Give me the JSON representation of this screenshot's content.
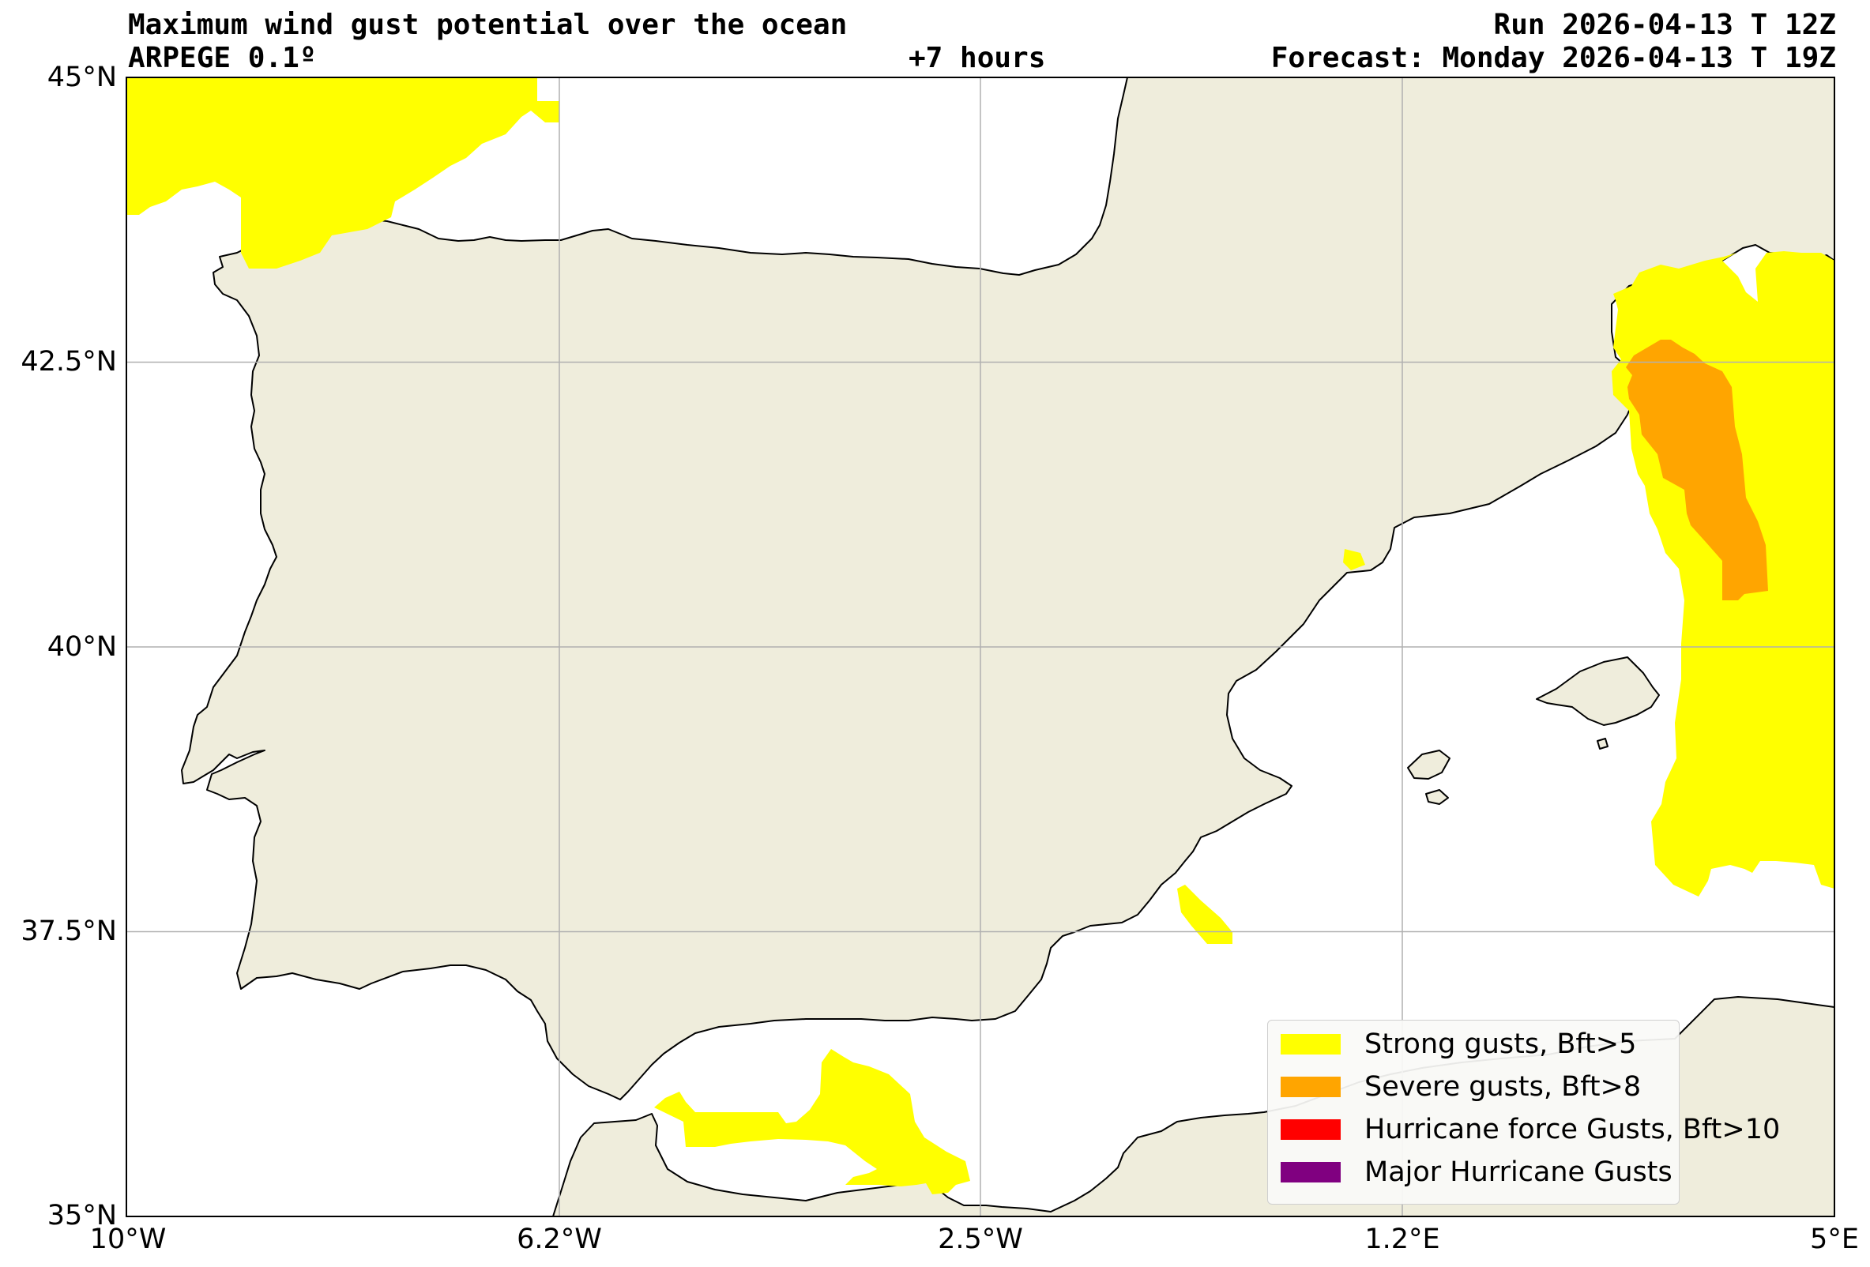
{
  "header": {
    "title": "Maximum wind gust potential over the ocean",
    "model": "ARPEGE 0.1º",
    "lead_time": "+7 hours",
    "run": "Run 2026-04-13 T 12Z",
    "forecast": "Forecast: Monday 2026-04-13 T 19Z"
  },
  "axes": {
    "lat_ticks": [
      "45°N",
      "42.5°N",
      "40°N",
      "37.5°N",
      "35°N"
    ],
    "lon_ticks": [
      "10°W",
      "6.2°W",
      "2.5°W",
      "1.2°E",
      "5°E"
    ]
  },
  "colors": {
    "land": "#efeddc",
    "sea": "#ffffff",
    "strong": "#ffff00",
    "severe": "#ffa500",
    "hurricane": "#ff0000",
    "major": "#800080"
  },
  "legend": {
    "items": [
      {
        "label": "Strong gusts, Bft>5",
        "color": "#ffff00"
      },
      {
        "label": "Severe gusts, Bft>8",
        "color": "#ffa500"
      },
      {
        "label": "Hurricane force Gusts, Bft>10",
        "color": "#ff0000"
      },
      {
        "label": "Major Hurricane Gusts",
        "color": "#800080"
      }
    ]
  }
}
